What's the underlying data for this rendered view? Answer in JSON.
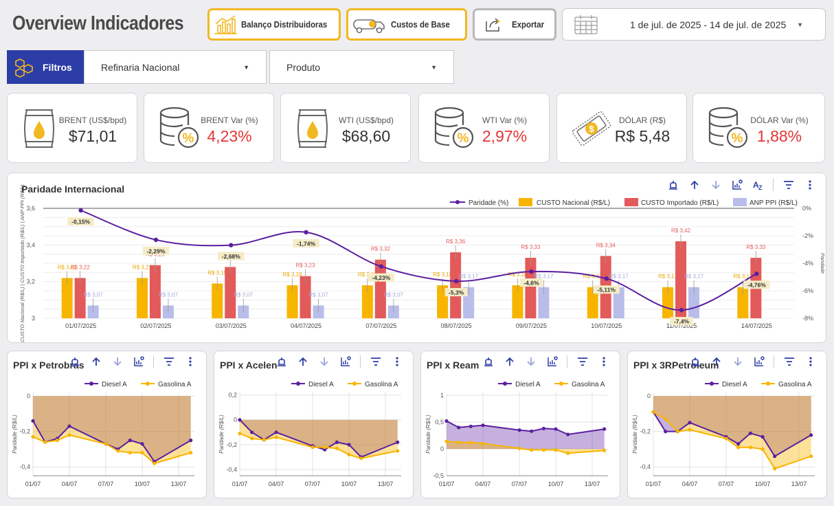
{
  "header": {
    "title": "Overview Indicadores",
    "buttons": {
      "balanco": "Balanço Distribuidoras",
      "custos": "Custos de Base",
      "exportar": "Exportar"
    },
    "date_range": "1 de jul. de 2025 - 14 de jul. de 2025"
  },
  "filters": {
    "label": "Filtros",
    "refinaria": "Refinaria Nacional",
    "produto": "Produto"
  },
  "kpis": [
    {
      "label": "BRENT (US$/bpd)",
      "value": "$71,01",
      "icon": "oil-barrel-icon"
    },
    {
      "label": "BRENT Var (%)",
      "value": "4,23%",
      "icon": "coins-percent-icon"
    },
    {
      "label": "WTI (US$/bpd)",
      "value": "$68,60",
      "icon": "oil-barrel-icon"
    },
    {
      "label": "WTI Var (%)",
      "value": "2,97%",
      "icon": "coins-percent-icon"
    },
    {
      "label": "DÓLAR (R$)",
      "value": "R$ 5,48",
      "icon": "money-bill-icon"
    },
    {
      "label": "DÓLAR Var (%)",
      "value": "1,88%",
      "icon": "coins-percent-icon"
    }
  ],
  "colors": {
    "accent": "#f2b821",
    "brand": "#2c3da6",
    "paridade": "#5b1fa0",
    "custo_nacional": "#f7b500",
    "custo_importado": "#e35a5a",
    "anp_ppi": "#b9bde9",
    "negative": "#e33535",
    "diesel": "#5b1fa0",
    "gasolina": "#f7b500"
  },
  "chart_data": [
    {
      "type": "bar",
      "title": "Paridade Internacional",
      "categories": [
        "01/07/2025",
        "02/07/2025",
        "03/07/2025",
        "04/07/2025",
        "07/07/2025",
        "08/07/2025",
        "09/07/2025",
        "10/07/2025",
        "11/07/2025",
        "14/07/2025"
      ],
      "ylabel": "CUSTO Nacional (R$/L) | CUSTO Importado (R$/L) | ANP PPI (R$/L)",
      "y2label": "Paridade",
      "ylim": [
        3,
        3.6
      ],
      "y2lim": [
        -8,
        0
      ],
      "yticks": [
        "3",
        "3,2",
        "3,4",
        "3,6"
      ],
      "y2ticks": [
        "0%",
        "-2%",
        "-4%",
        "-6%",
        "-8%"
      ],
      "legend_position": "top-right",
      "series": [
        {
          "name": "CUSTO Nacional (R$/L)",
          "values": [
            3.22,
            3.22,
            3.19,
            3.18,
            3.18,
            3.18,
            3.18,
            3.17,
            3.17,
            3.17
          ],
          "labels": [
            "R$ 3,22",
            "R$ 3,22",
            "R$ 3,19",
            "R$ 3,18",
            "R$ 3,18",
            "R$ 3,18",
            "R$ 3,18",
            "R$ 3,17",
            "R$ 3,17",
            "R$ 3,17"
          ]
        },
        {
          "name": "CUSTO Importado (R$/L)",
          "values": [
            3.22,
            3.29,
            3.28,
            3.23,
            3.32,
            3.36,
            3.33,
            3.34,
            3.42,
            3.33
          ],
          "labels": [
            "R$ 3,22",
            "R$ 3,29",
            "R$ 3,28",
            "R$ 3,23",
            "R$ 3,32",
            "R$ 3,36",
            "R$ 3,33",
            "R$ 3,34",
            "R$ 3,42",
            "R$ 3,33"
          ]
        },
        {
          "name": "ANP PPI (R$/L)",
          "values": [
            3.07,
            3.07,
            3.07,
            3.07,
            3.07,
            3.17,
            3.17,
            3.17,
            3.17,
            null
          ],
          "labels": [
            "R$ 3,07",
            "R$ 3,07",
            "R$ 3,07",
            "R$ 3,07",
            "R$ 3,07",
            "R$ 3,17",
            "R$ 3,17",
            "R$ 3,17",
            "R$ 3,17",
            ""
          ]
        },
        {
          "name": "Paridade (%)",
          "axis": "right",
          "type": "line",
          "values": [
            -0.15,
            -2.29,
            -2.68,
            -1.74,
            -4.23,
            -5.3,
            -4.6,
            -5.11,
            -7.4,
            -4.76
          ],
          "labels": [
            "-0,15%",
            "-2,29%",
            "-2,68%",
            "-1,74%",
            "-4,23%",
            "-5,3%",
            "-4,6%",
            "-5,11%",
            "-7,4%",
            "-4,76%"
          ]
        }
      ]
    },
    {
      "type": "area",
      "title": "PPI x Petrobras",
      "ylabel": "Paridade (R$/L)",
      "x": [
        "01/07",
        "02/07",
        "03/07",
        "04/07",
        "07/07",
        "08/07",
        "09/07",
        "10/07",
        "11/07",
        "14/07"
      ],
      "xticks": [
        "01/07",
        "04/07",
        "07/07",
        "10/07",
        "13/07"
      ],
      "xvals": [
        1,
        2,
        3,
        4,
        7,
        8,
        9,
        10,
        11,
        14
      ],
      "ylim": [
        -0.45,
        0.02
      ],
      "yticks": [
        0,
        -0.2,
        -0.4
      ],
      "ytick_labels": [
        "0",
        "-0,2",
        "-0,4"
      ],
      "series": [
        {
          "name": "Diesel A",
          "values": [
            -0.14,
            -0.26,
            -0.24,
            -0.17,
            -0.27,
            -0.3,
            -0.25,
            -0.27,
            -0.37,
            -0.25
          ]
        },
        {
          "name": "Gasolina A",
          "values": [
            -0.23,
            -0.26,
            -0.25,
            -0.22,
            -0.27,
            -0.31,
            -0.32,
            -0.32,
            -0.38,
            -0.32
          ]
        }
      ]
    },
    {
      "type": "area",
      "title": "PPI x Acelen",
      "ylabel": "Paridade (R$/L)",
      "x": [
        "01/07",
        "02/07",
        "03/07",
        "04/07",
        "07/07",
        "08/07",
        "09/07",
        "10/07",
        "11/07",
        "14/07"
      ],
      "xticks": [
        "01/07",
        "04/07",
        "07/07",
        "10/07",
        "13/07"
      ],
      "xvals": [
        1,
        2,
        3,
        4,
        7,
        8,
        9,
        10,
        11,
        14
      ],
      "ylim": [
        -0.45,
        0.22
      ],
      "yticks": [
        0.2,
        0,
        -0.2,
        -0.4
      ],
      "ytick_labels": [
        "0,2",
        "0",
        "-0,2",
        "-0,4"
      ],
      "series": [
        {
          "name": "Diesel A",
          "values": [
            0.0,
            -0.1,
            -0.16,
            -0.1,
            -0.21,
            -0.24,
            -0.18,
            -0.2,
            -0.3,
            -0.18
          ]
        },
        {
          "name": "Gasolina A",
          "values": [
            -0.11,
            -0.15,
            -0.16,
            -0.14,
            -0.22,
            -0.22,
            -0.23,
            -0.28,
            -0.31,
            -0.25
          ]
        }
      ]
    },
    {
      "type": "area",
      "title": "PPI x Ream",
      "ylabel": "Paridade (R$/L)",
      "x": [
        "01/07",
        "02/07",
        "03/07",
        "04/07",
        "07/07",
        "08/07",
        "09/07",
        "10/07",
        "11/07",
        "14/07"
      ],
      "xticks": [
        "01/07",
        "04/07",
        "07/07",
        "10/07",
        "13/07"
      ],
      "xvals": [
        1,
        2,
        3,
        4,
        7,
        8,
        9,
        10,
        11,
        14
      ],
      "ylim": [
        -0.5,
        1.05
      ],
      "yticks": [
        1,
        0.5,
        0,
        -0.5
      ],
      "ytick_labels": [
        "1",
        "0,5",
        "0",
        "-0,5"
      ],
      "series": [
        {
          "name": "Diesel A",
          "values": [
            0.52,
            0.4,
            0.42,
            0.44,
            0.35,
            0.33,
            0.38,
            0.37,
            0.27,
            0.37
          ]
        },
        {
          "name": "Gasolina A",
          "values": [
            0.14,
            0.12,
            0.12,
            0.1,
            0.01,
            -0.02,
            -0.02,
            -0.02,
            -0.08,
            -0.03
          ]
        }
      ]
    },
    {
      "type": "area",
      "title": "PPI x 3RPetroleum",
      "ylabel": "Paridade (R$/L)",
      "x": [
        "01/07",
        "02/07",
        "03/07",
        "04/07",
        "07/07",
        "08/07",
        "09/07",
        "10/07",
        "11/07",
        "14/07"
      ],
      "xticks": [
        "01/07",
        "04/07",
        "07/07",
        "10/07",
        "13/07"
      ],
      "xvals": [
        1,
        2,
        3,
        4,
        7,
        8,
        9,
        10,
        11,
        14
      ],
      "ylim": [
        -0.45,
        0.02
      ],
      "yticks": [
        0,
        -0.2,
        -0.4
      ],
      "ytick_labels": [
        "0",
        "-0,2",
        "-0,4"
      ],
      "series": [
        {
          "name": "Diesel A",
          "values": [
            -0.09,
            -0.2,
            -0.2,
            -0.15,
            -0.23,
            -0.27,
            -0.21,
            -0.23,
            -0.34,
            -0.22
          ]
        },
        {
          "name": "Gasolina A",
          "values": [
            -0.09,
            -0.13,
            -0.2,
            -0.19,
            -0.24,
            -0.29,
            -0.29,
            -0.3,
            -0.41,
            -0.34
          ]
        }
      ]
    }
  ]
}
